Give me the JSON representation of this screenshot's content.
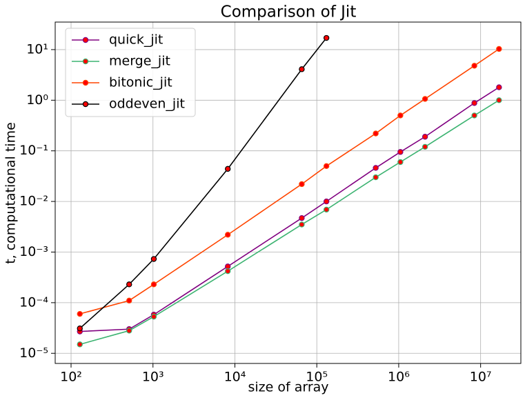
{
  "chart_data": {
    "type": "line",
    "title": "Comparison of Jit",
    "x_label": "size of array",
    "y_label": "t, computational time",
    "x_scale": "log",
    "y_scale": "log",
    "grid": true,
    "legend_position": "upper-left",
    "marker_color": "#ff0000",
    "x": [
      128,
      512,
      1024,
      8192,
      65536,
      131072,
      524288,
      1048576,
      2097152,
      8388608,
      16777216
    ],
    "series": [
      {
        "name": "quick_jit",
        "color": "#800080",
        "values": [
          2.7e-05,
          3e-05,
          5.8e-05,
          0.00052,
          0.0047,
          0.01,
          0.046,
          0.095,
          0.19,
          0.88,
          1.8
        ]
      },
      {
        "name": "merge_jit",
        "color": "#3cb371",
        "values": [
          1.5e-05,
          2.8e-05,
          5.3e-05,
          0.00042,
          0.0035,
          0.0069,
          0.03,
          0.06,
          0.12,
          0.5,
          1.0
        ]
      },
      {
        "name": "bitonic_jit",
        "color": "#ff4500",
        "values": [
          6e-05,
          0.00011,
          0.00023,
          0.0022,
          0.022,
          0.05,
          0.22,
          0.5,
          1.06,
          4.8,
          10.3
        ]
      },
      {
        "name": "oddeven_jit",
        "color": "#000000",
        "values": [
          3.1e-05,
          0.00023,
          0.00073,
          0.044,
          4.1,
          17,
          null,
          null,
          null,
          null,
          null
        ]
      }
    ],
    "xlim": [
      64,
      31000000
    ],
    "ylim": [
      6.3e-06,
      35
    ],
    "xticks": [
      {
        "value": 100,
        "label": "10²"
      },
      {
        "value": 1000,
        "label": "10³"
      },
      {
        "value": 10000,
        "label": "10⁴"
      },
      {
        "value": 100000,
        "label": "10⁵"
      },
      {
        "value": 1000000,
        "label": "10⁶"
      },
      {
        "value": 10000000,
        "label": "10⁷"
      }
    ],
    "yticks": [
      {
        "value": 1e-05,
        "label": "10⁻⁵"
      },
      {
        "value": 0.0001,
        "label": "10⁻⁴"
      },
      {
        "value": 0.001,
        "label": "10⁻³"
      },
      {
        "value": 0.01,
        "label": "10⁻²"
      },
      {
        "value": 0.1,
        "label": "10⁻¹"
      },
      {
        "value": 1,
        "label": "10⁰"
      },
      {
        "value": 10,
        "label": "10¹"
      }
    ]
  }
}
